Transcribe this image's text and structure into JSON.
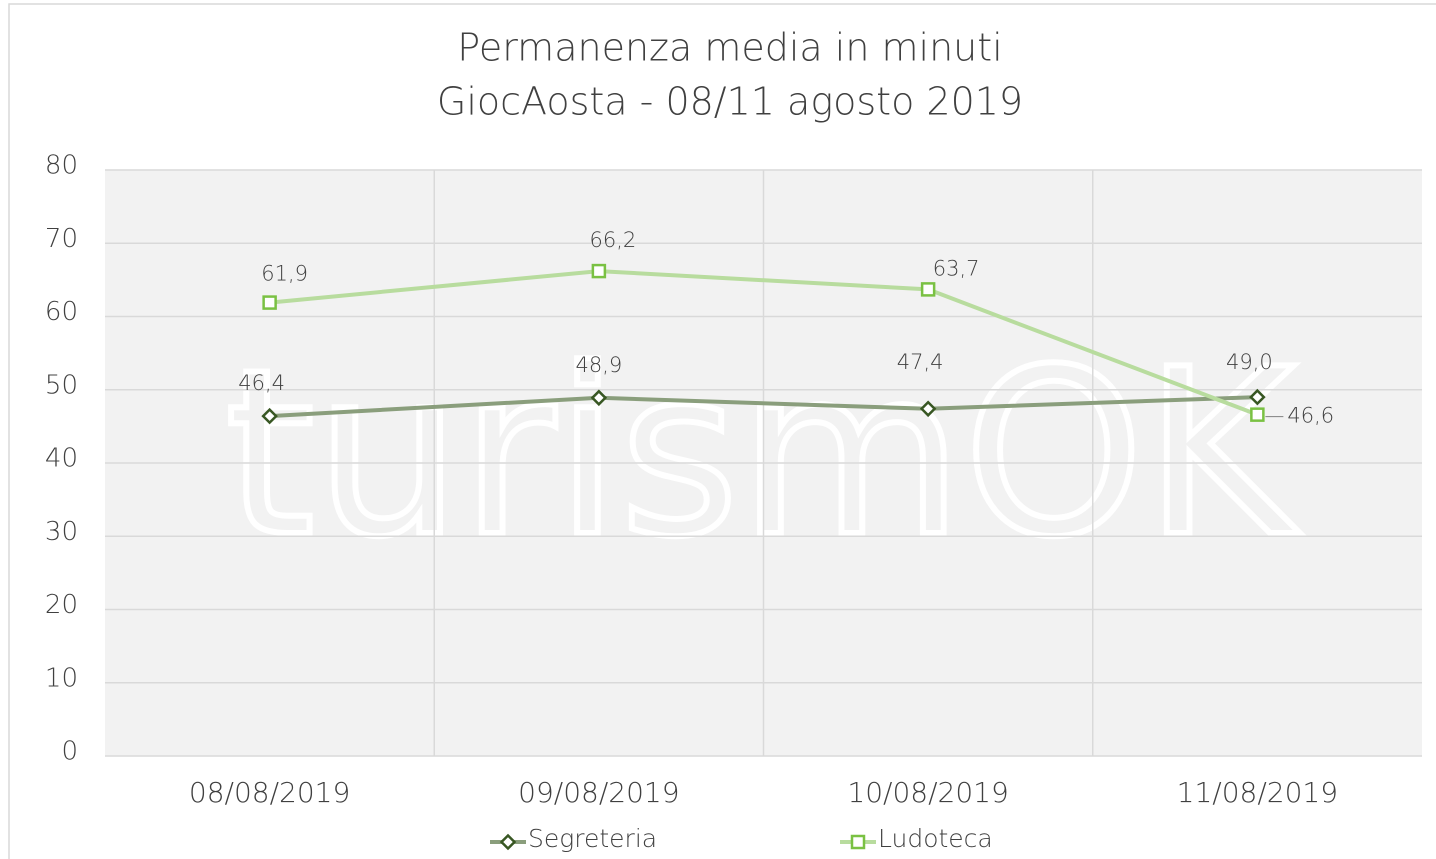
{
  "chart_data": {
    "type": "line",
    "title": "Permanenza media in minuti",
    "subtitle": "GiocAosta - 08/11 agosto 2019",
    "watermark": "turismOK",
    "categories": [
      "08/08/2019",
      "09/08/2019",
      "10/08/2019",
      "11/08/2019"
    ],
    "series": [
      {
        "name": "Segreteria",
        "color": "#8a9e7c",
        "marker": "diamond",
        "marker_color": "#385723",
        "values": [
          46.4,
          48.9,
          47.4,
          49.0
        ],
        "value_labels": [
          "46,4",
          "48,9",
          "47,4",
          "49,0"
        ]
      },
      {
        "name": "Ludoteca",
        "color": "#b8dc9e",
        "marker": "square",
        "marker_color": "#7ac143",
        "values": [
          61.9,
          66.2,
          63.7,
          46.6
        ],
        "value_labels": [
          "61,9",
          "66,2",
          "63,7",
          "46,6"
        ]
      }
    ],
    "ylim": [
      0,
      80
    ],
    "yticks": [
      0,
      10,
      20,
      30,
      40,
      50,
      60,
      70,
      80
    ],
    "grid": true,
    "legend": "bottom"
  }
}
